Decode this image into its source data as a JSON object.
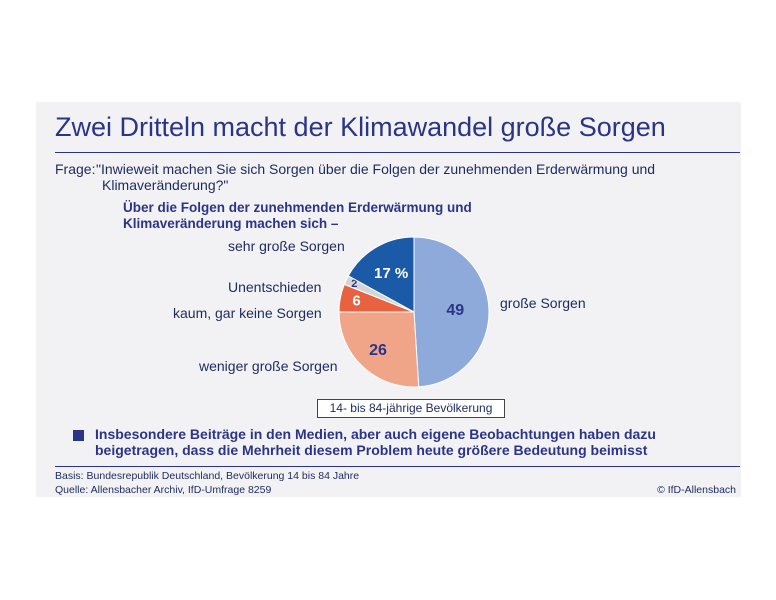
{
  "title": "Zwei Dritteln macht der Klimawandel große Sorgen",
  "question": {
    "label": "Frage:",
    "line1": "\"Inwieweit machen Sie sich Sorgen über die Folgen der zunehmenden Erderwärmung und",
    "line2": "Klimaveränderung?\""
  },
  "intro": {
    "line1": "Über die Folgen der zunehmenden Erderwärmung und",
    "line2": "Klimaveränderung machen sich –"
  },
  "chart_data": {
    "type": "pie",
    "slices": [
      {
        "label": "große Sorgen",
        "value": 49,
        "display": "49",
        "color": "#8eaadb",
        "text_color": "#2b3587"
      },
      {
        "label": "weniger große Sorgen",
        "value": 26,
        "display": "26",
        "color": "#f0a488",
        "text_color": "#2b3587"
      },
      {
        "label": "kaum, gar keine Sorgen",
        "value": 6,
        "display": "6",
        "color": "#e8623f",
        "text_color": "#ffffff"
      },
      {
        "label": "Unentschieden",
        "value": 2,
        "display": "2",
        "color": "#d3d5d8",
        "text_color": "#2b3587"
      },
      {
        "label": "sehr große Sorgen",
        "value": 17,
        "display": "17 %",
        "color": "#1a5aa6",
        "text_color": "#ffffff"
      }
    ]
  },
  "base_label": "14- bis 84-jährige Bevölkerung",
  "note": {
    "line1": "Insbesondere Beiträge in den Medien, aber auch eigene Beobachtungen haben dazu",
    "line2": "beigetragen, dass die Mehrheit diesem Problem heute größere Bedeutung beimisst"
  },
  "footer": {
    "basis": "Basis: Bundesrepublik Deutschland, Bevölkerung 14 bis 84 Jahre",
    "source": "Quelle: Allensbacher Archiv, IfD-Umfrage 8259",
    "copyright": "© IfD-Allensbach"
  },
  "colors": {
    "accent": "#2b3587",
    "panel": "#f2f2f4"
  }
}
